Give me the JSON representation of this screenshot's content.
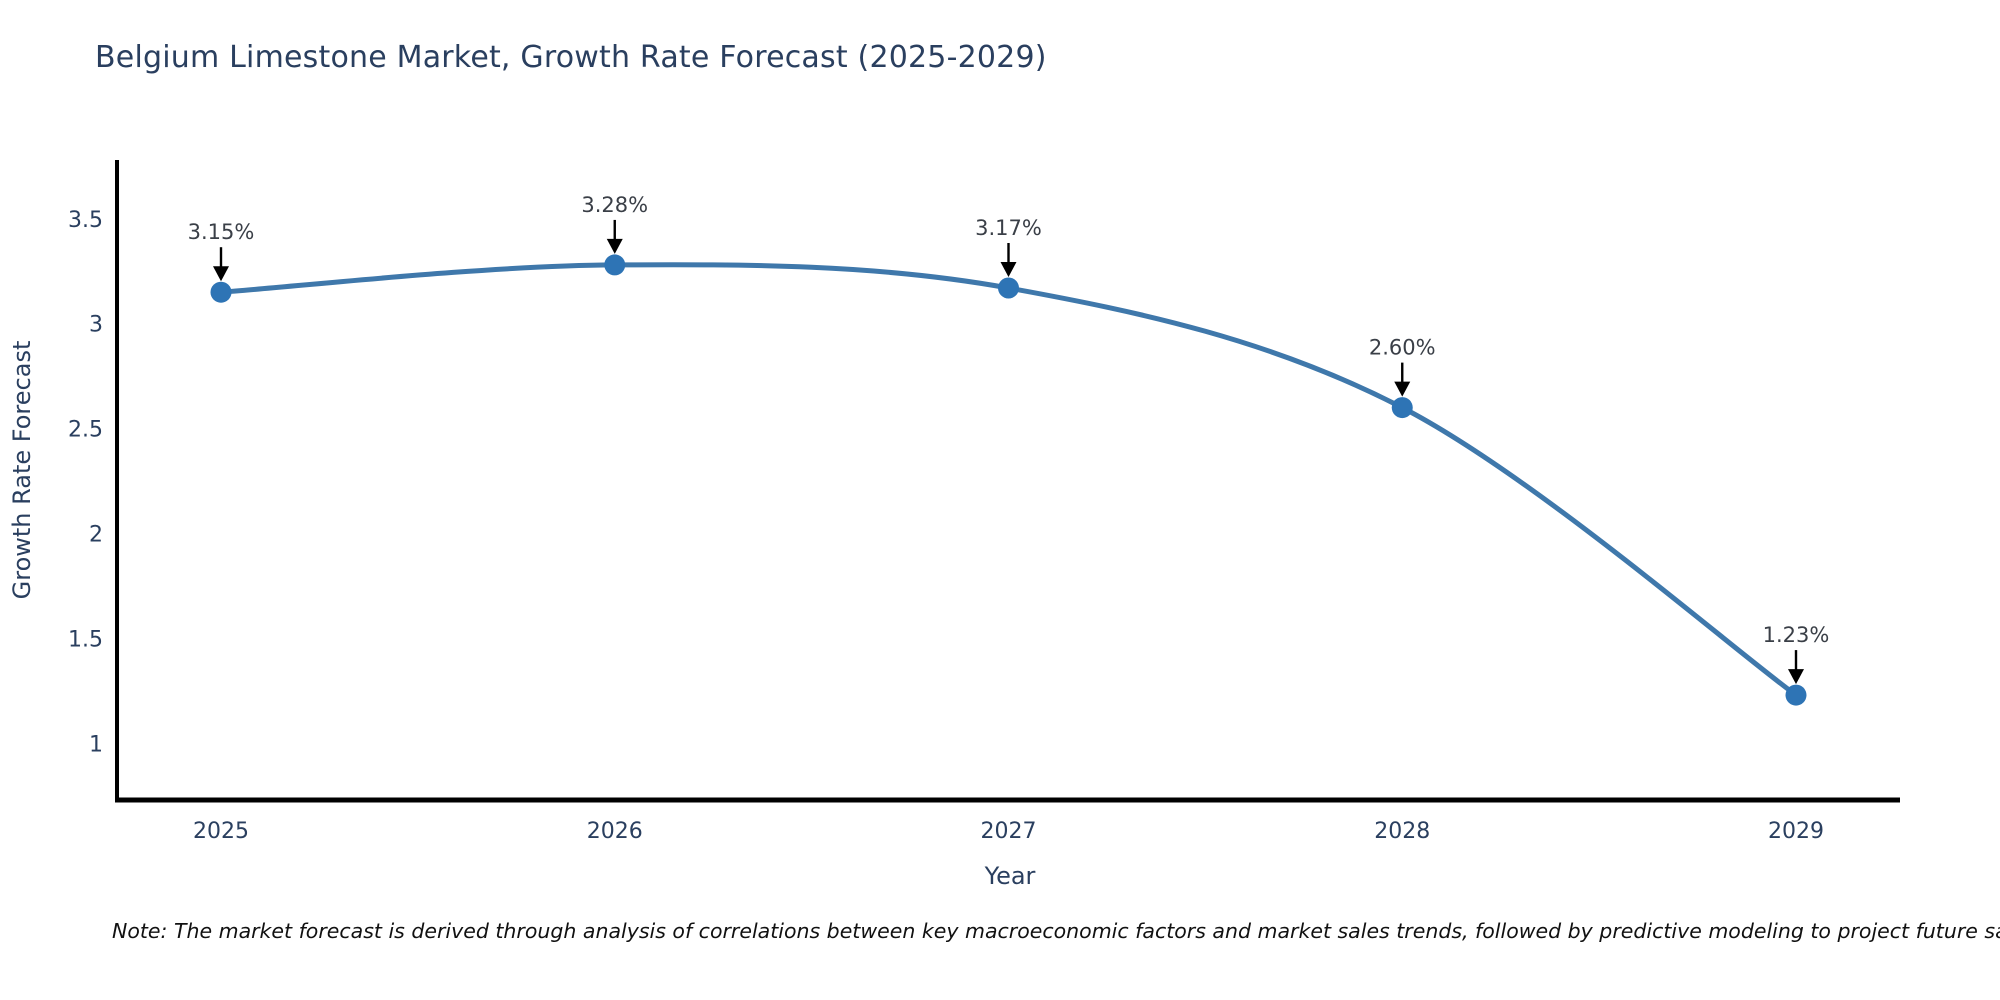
{
  "note": "Note: The market forecast is derived through analysis of correlations between key macroeconomic factors and market sales trends, followed by predictive modeling to project future sales",
  "chart_data": {
    "type": "line",
    "title": "Belgium Limestone Market, Growth Rate Forecast (2025-2029)",
    "xlabel": "Year",
    "ylabel": "Growth Rate Forecast",
    "x": [
      2025,
      2026,
      2027,
      2028,
      2029
    ],
    "series": [
      {
        "name": "Growth Rate Forecast",
        "values": [
          3.15,
          3.28,
          3.17,
          2.6,
          1.23
        ]
      }
    ],
    "point_labels": [
      "3.15%",
      "3.28%",
      "3.17%",
      "2.60%",
      "1.23%"
    ],
    "yticks": [
      1,
      1.5,
      2,
      2.5,
      3,
      3.5
    ],
    "ylim": [
      0.73,
      3.78
    ],
    "grid": false,
    "legend": "none",
    "annotation_style": "label-with-down-arrow",
    "colors": {
      "line": "#3f78ab",
      "marker": "#2e74b5",
      "axis": "#000000",
      "arrow": "#000000",
      "title_text": "#2a3f5f",
      "tick_text": "#2a3f5f",
      "annotation_text": "#3a3f47",
      "note_text": "#111111"
    }
  }
}
